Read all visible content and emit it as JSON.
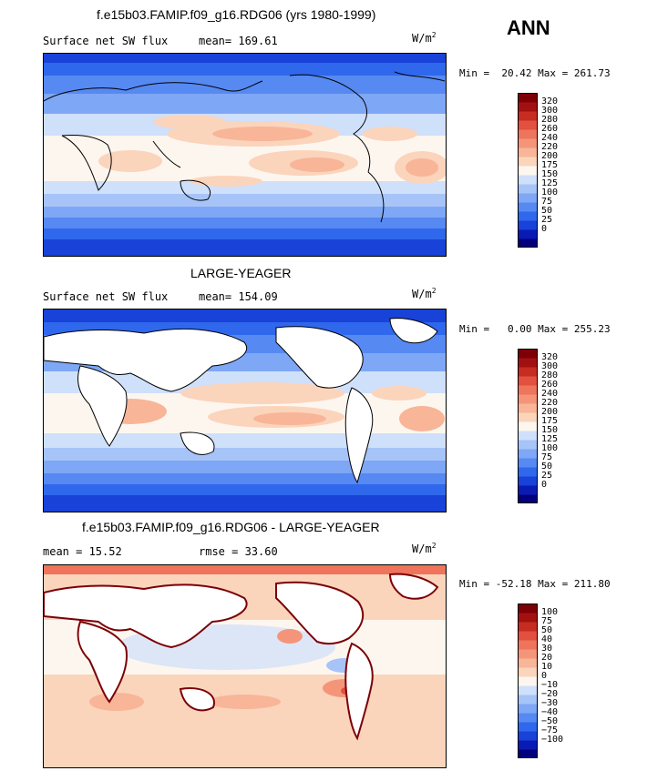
{
  "season": "ANN",
  "units": {
    "base": "W/m",
    "exp": "2"
  },
  "panels": [
    {
      "title": "f.e15b03.FAMIP.f09_g16.RDG06 (yrs 1980-1999)",
      "variable": "Surface net SW flux",
      "stat": "mean= 169.61",
      "minmax": "Min =  20.42 Max = 261.73",
      "colorbar": {
        "colors": [
          "#04007d",
          "#0a1ab4",
          "#1842d8",
          "#2f68ec",
          "#5689f2",
          "#7ea7f5",
          "#a7c4f8",
          "#cfe0fb",
          "#fdf6ef",
          "#fbd4bc",
          "#f8b598",
          "#f4957a",
          "#ee745c",
          "#e2503f",
          "#c72c23",
          "#a21110",
          "#7c0006"
        ],
        "labels": [
          "320",
          "300",
          "280",
          "260",
          "240",
          "220",
          "200",
          "175",
          "150",
          "125",
          "100",
          "75",
          "50",
          "25",
          "0"
        ]
      }
    },
    {
      "title": "LARGE-YEAGER",
      "variable": "Surface net SW flux",
      "stat": "mean= 154.09",
      "minmax": "Min =   0.00 Max = 255.23",
      "colorbar": {
        "colors": [
          "#04007d",
          "#0a1ab4",
          "#1842d8",
          "#2f68ec",
          "#5689f2",
          "#7ea7f5",
          "#a7c4f8",
          "#cfe0fb",
          "#fdf6ef",
          "#fbd4bc",
          "#f8b598",
          "#f4957a",
          "#ee745c",
          "#e2503f",
          "#c72c23",
          "#a21110",
          "#7c0006"
        ],
        "labels": [
          "320",
          "300",
          "280",
          "260",
          "240",
          "220",
          "200",
          "175",
          "150",
          "125",
          "100",
          "75",
          "50",
          "25",
          "0"
        ]
      }
    },
    {
      "title": "f.e15b03.FAMIP.f09_g16.RDG06 - LARGE-YEAGER",
      "variable": "mean =  15.52",
      "stat": "rmse =  33.60",
      "minmax": "Min = -52.18 Max = 211.80",
      "colorbar": {
        "colors": [
          "#04007d",
          "#0a1ab4",
          "#1842d8",
          "#2f68ec",
          "#5689f2",
          "#7ea7f5",
          "#a7c4f8",
          "#cfe0fb",
          "#fdf6ef",
          "#fbd4bc",
          "#f8b598",
          "#f4957a",
          "#ee745c",
          "#e2503f",
          "#c72c23",
          "#a21110",
          "#7c0006"
        ],
        "labels": [
          "100",
          "75",
          "50",
          "40",
          "30",
          "20",
          "10",
          "0",
          "−10",
          "−20",
          "−30",
          "−40",
          "−50",
          "−75",
          "−100"
        ]
      }
    }
  ]
}
